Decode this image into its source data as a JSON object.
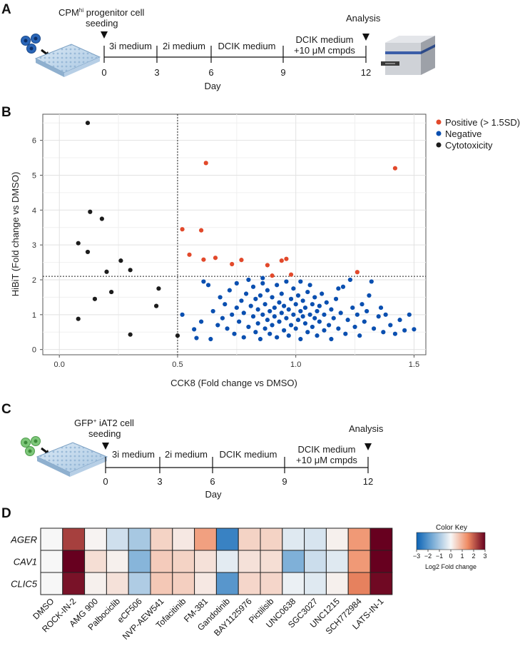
{
  "panels": {
    "a": {
      "letter": "A",
      "seeding_main": "CPM",
      "seeding_sup": "hi",
      "seeding_rest": " progenitor cell",
      "seeding_line2": "seeding",
      "analysis": "Analysis",
      "stages": [
        "3i medium",
        "2i medium",
        "DCIK medium",
        "DCIK medium"
      ],
      "stage4_line2": "+10 μM cmpds",
      "days": [
        "0",
        "3",
        "6",
        "9",
        "12"
      ],
      "axis_label": "Day"
    },
    "b": {
      "letter": "B",
      "legend": [
        "Positive (> 1.5SD)",
        "Negative",
        "Cytotoxicity"
      ]
    },
    "c": {
      "letter": "C",
      "seeding_main": "GFP",
      "seeding_sup": "+",
      "seeding_rest": " iAT2 cell",
      "seeding_line2": "seeding",
      "analysis": "Analysis",
      "stages": [
        "3i medium",
        "2i medium",
        "DCIK medium",
        "DCIK medium"
      ],
      "stage4_line2": "+10 μM cmpds",
      "days": [
        "0",
        "3",
        "6",
        "9",
        "12"
      ],
      "axis_label": "Day"
    },
    "d": {
      "letter": "D",
      "color_key_title": "Color Key",
      "color_key_ticks": [
        "−3",
        "−2",
        "−1",
        "0",
        "1",
        "2",
        "3"
      ],
      "color_key_label": "Log2 Fold change"
    }
  },
  "colors": {
    "positive": "#e2492b",
    "negative": "#0a4fb0",
    "cytotoxicity": "#1c1c1c"
  },
  "chart_data": [
    {
      "type": "scatter",
      "title": "",
      "xlabel": "CCK8 (Fold change vs DMSO)",
      "ylabel": "HiBiT (Fold change vs DMSO)",
      "xlim": [
        -0.07,
        1.55
      ],
      "ylim": [
        -0.15,
        6.75
      ],
      "xticks": [
        0.0,
        0.5,
        1.0,
        1.5
      ],
      "xtick_labels": [
        "0.0",
        "0.5",
        "1.0",
        "1.5"
      ],
      "yticks": [
        0,
        1,
        2,
        3,
        4,
        5,
        6
      ],
      "ytick_labels": [
        "0",
        "1",
        "2",
        "3",
        "4",
        "5",
        "6"
      ],
      "threshold_x": 0.5,
      "threshold_y": 2.1,
      "legend_position": "top-right",
      "series": [
        {
          "name": "Cytotoxicity",
          "color": "#1c1c1c",
          "points": [
            [
              0.12,
              6.5
            ],
            [
              0.13,
              3.95
            ],
            [
              0.18,
              3.75
            ],
            [
              0.08,
              3.05
            ],
            [
              0.12,
              2.8
            ],
            [
              0.26,
              2.55
            ],
            [
              0.3,
              2.28
            ],
            [
              0.2,
              2.23
            ],
            [
              0.42,
              1.75
            ],
            [
              0.22,
              1.65
            ],
            [
              0.15,
              1.45
            ],
            [
              0.41,
              1.25
            ],
            [
              0.08,
              0.88
            ],
            [
              0.3,
              0.43
            ],
            [
              0.5,
              0.4
            ]
          ]
        },
        {
          "name": "Positive (> 1.5SD)",
          "color": "#e2492b",
          "points": [
            [
              0.62,
              5.35
            ],
            [
              1.42,
              5.2
            ],
            [
              0.52,
              3.45
            ],
            [
              0.6,
              3.42
            ],
            [
              0.55,
              2.72
            ],
            [
              0.61,
              2.58
            ],
            [
              0.66,
              2.63
            ],
            [
              0.73,
              2.45
            ],
            [
              0.77,
              2.57
            ],
            [
              0.88,
              2.42
            ],
            [
              0.94,
              2.55
            ],
            [
              0.96,
              2.6
            ],
            [
              0.9,
              2.12
            ],
            [
              0.98,
              2.15
            ],
            [
              1.26,
              2.22
            ]
          ]
        },
        {
          "name": "Negative",
          "color": "#0a4fb0",
          "points": [
            [
              0.52,
              1.0
            ],
            [
              0.57,
              0.58
            ],
            [
              0.58,
              0.33
            ],
            [
              0.6,
              0.8
            ],
            [
              0.61,
              1.95
            ],
            [
              0.63,
              1.85
            ],
            [
              0.64,
              0.3
            ],
            [
              0.65,
              1.1
            ],
            [
              0.67,
              0.7
            ],
            [
              0.68,
              1.5
            ],
            [
              0.69,
              0.9
            ],
            [
              0.7,
              1.3
            ],
            [
              0.71,
              0.6
            ],
            [
              0.72,
              1.7
            ],
            [
              0.73,
              1.0
            ],
            [
              0.74,
              0.45
            ],
            [
              0.75,
              1.2
            ],
            [
              0.75,
              1.9
            ],
            [
              0.76,
              0.8
            ],
            [
              0.77,
              1.4
            ],
            [
              0.78,
              0.35
            ],
            [
              0.78,
              1.05
            ],
            [
              0.79,
              1.6
            ],
            [
              0.8,
              0.65
            ],
            [
              0.8,
              2.0
            ],
            [
              0.81,
              1.25
            ],
            [
              0.82,
              0.95
            ],
            [
              0.82,
              1.8
            ],
            [
              0.83,
              0.5
            ],
            [
              0.83,
              1.45
            ],
            [
              0.84,
              0.75
            ],
            [
              0.84,
              1.15
            ],
            [
              0.85,
              1.55
            ],
            [
              0.85,
              0.3
            ],
            [
              0.86,
              1.0
            ],
            [
              0.86,
              1.9
            ],
            [
              0.87,
              0.6
            ],
            [
              0.87,
              1.3
            ],
            [
              0.88,
              0.85
            ],
            [
              0.88,
              1.7
            ],
            [
              0.89,
              0.45
            ],
            [
              0.89,
              1.1
            ],
            [
              0.9,
              1.5
            ],
            [
              0.9,
              0.7
            ],
            [
              0.91,
              1.2
            ],
            [
              0.91,
              0.95
            ],
            [
              0.92,
              1.85
            ],
            [
              0.92,
              0.35
            ],
            [
              0.93,
              1.35
            ],
            [
              0.93,
              0.8
            ],
            [
              0.94,
              1.05
            ],
            [
              0.94,
              1.6
            ],
            [
              0.95,
              0.55
            ],
            [
              0.95,
              1.25
            ],
            [
              0.96,
              0.9
            ],
            [
              0.96,
              1.95
            ],
            [
              0.97,
              0.4
            ],
            [
              0.97,
              1.15
            ],
            [
              0.98,
              1.45
            ],
            [
              0.98,
              0.7
            ],
            [
              0.99,
              1.0
            ],
            [
              0.99,
              1.75
            ],
            [
              1.0,
              0.6
            ],
            [
              1.0,
              1.3
            ],
            [
              1.01,
              0.85
            ],
            [
              1.01,
              1.55
            ],
            [
              1.02,
              0.3
            ],
            [
              1.02,
              1.1
            ],
            [
              1.03,
              0.95
            ],
            [
              1.03,
              1.4
            ],
            [
              1.04,
              0.75
            ],
            [
              1.04,
              1.2
            ],
            [
              1.05,
              1.65
            ],
            [
              1.05,
              0.5
            ],
            [
              1.06,
              1.0
            ],
            [
              1.06,
              1.85
            ],
            [
              1.07,
              0.65
            ],
            [
              1.07,
              1.3
            ],
            [
              1.08,
              0.9
            ],
            [
              1.08,
              1.5
            ],
            [
              1.09,
              0.4
            ],
            [
              1.09,
              1.1
            ],
            [
              1.1,
              1.25
            ],
            [
              1.1,
              0.8
            ],
            [
              1.11,
              1.6
            ],
            [
              1.12,
              0.55
            ],
            [
              1.12,
              1.0
            ],
            [
              1.13,
              1.35
            ],
            [
              1.14,
              0.7
            ],
            [
              1.15,
              1.15
            ],
            [
              1.15,
              0.3
            ],
            [
              1.16,
              0.9
            ],
            [
              1.17,
              1.45
            ],
            [
              1.18,
              0.6
            ],
            [
              1.19,
              1.05
            ],
            [
              1.2,
              1.8
            ],
            [
              1.21,
              0.45
            ],
            [
              1.22,
              0.85
            ],
            [
              1.23,
              2.0
            ],
            [
              1.24,
              1.2
            ],
            [
              1.25,
              0.65
            ],
            [
              1.26,
              1.0
            ],
            [
              1.27,
              0.4
            ],
            [
              1.28,
              1.3
            ],
            [
              1.29,
              0.8
            ],
            [
              1.3,
              1.1
            ],
            [
              1.31,
              1.55
            ],
            [
              1.33,
              0.6
            ],
            [
              1.35,
              0.95
            ],
            [
              1.37,
              0.5
            ],
            [
              1.4,
              0.7
            ],
            [
              1.42,
              0.45
            ],
            [
              1.44,
              0.85
            ],
            [
              1.46,
              0.55
            ],
            [
              1.5,
              0.58
            ],
            [
              1.48,
              1.0
            ],
            [
              1.38,
              1.0
            ],
            [
              1.36,
              1.2
            ],
            [
              1.32,
              1.95
            ],
            [
              0.86,
              2.05
            ],
            [
              1.02,
              1.95
            ],
            [
              1.18,
              1.75
            ]
          ]
        }
      ]
    },
    {
      "type": "heatmap",
      "rows": [
        "AGER",
        "CAV1",
        "CLIC5"
      ],
      "columns": [
        "DMSO",
        "ROCK-IN-2",
        "AMG 900",
        "Palbociclib",
        "eCF506",
        "NVP-AEW541",
        "Tofacitinib",
        "FM-381",
        "Gandotinib",
        "BAY1125976",
        "Pictilisib",
        "UNC0638",
        "SGC3027",
        "UNC1215",
        "SCH772984",
        "LATS-IN-1"
      ],
      "values": [
        [
          0,
          2.3,
          0.05,
          -0.5,
          -1.0,
          0.5,
          0.2,
          1.2,
          -2.4,
          0.5,
          0.5,
          -0.3,
          -0.4,
          0.1,
          1.3,
          3.0
        ],
        [
          0,
          3.0,
          0.35,
          0.1,
          -1.4,
          0.6,
          0.5,
          0.3,
          -0.25,
          0.3,
          0.35,
          -1.5,
          -0.55,
          -0.3,
          1.3,
          3.0
        ],
        [
          0,
          2.8,
          0.1,
          0.3,
          -0.9,
          0.65,
          0.55,
          0.2,
          -2.0,
          0.45,
          0.45,
          -0.15,
          -0.3,
          0.1,
          1.6,
          2.9
        ]
      ],
      "color_range": [
        -3,
        3
      ],
      "color_label": "Log2 Fold change"
    }
  ]
}
